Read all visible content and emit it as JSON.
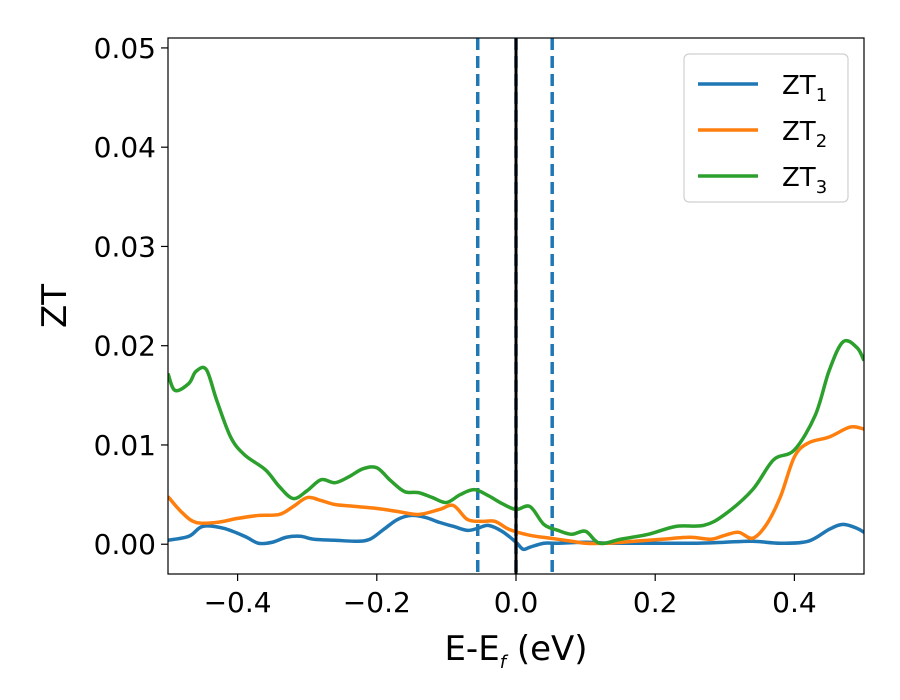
{
  "chart_data": {
    "type": "line",
    "xlabel": "E-E",
    "xlabel_sub": "f",
    "xlabel_unit": " (eV)",
    "ylabel": "ZT",
    "xlim": [
      -0.5,
      0.5
    ],
    "ylim": [
      -0.003,
      0.051
    ],
    "xticks": [
      -0.4,
      -0.2,
      0.0,
      0.2,
      0.4
    ],
    "xtick_labels": [
      "−0.4",
      "−0.2",
      "0.0",
      "0.2",
      "0.4"
    ],
    "yticks": [
      0.0,
      0.01,
      0.02,
      0.03,
      0.04,
      0.05
    ],
    "ytick_labels": [
      "0.00",
      "0.01",
      "0.02",
      "0.03",
      "0.04",
      "0.05"
    ],
    "legend_position": "top-right",
    "vlines": [
      {
        "x": -0.055,
        "style": "dashed",
        "color": "#1f77b4"
      },
      {
        "x": 0.0,
        "style": "dashed",
        "color": "#1f77b4"
      },
      {
        "x": 0.0,
        "style": "solid",
        "color": "#000000"
      },
      {
        "x": 0.052,
        "style": "dashed",
        "color": "#1f77b4"
      }
    ],
    "series": [
      {
        "name": "ZT",
        "sub": "1",
        "color": "#1f77b4",
        "x": [
          -0.5,
          -0.47,
          -0.45,
          -0.42,
          -0.39,
          -0.37,
          -0.35,
          -0.33,
          -0.31,
          -0.29,
          -0.26,
          -0.23,
          -0.21,
          -0.19,
          -0.17,
          -0.15,
          -0.13,
          -0.11,
          -0.09,
          -0.07,
          -0.055,
          -0.04,
          -0.02,
          0.0,
          0.01,
          0.02,
          0.04,
          0.06,
          0.1,
          0.14,
          0.2,
          0.26,
          0.3,
          0.34,
          0.38,
          0.42,
          0.45,
          0.47,
          0.49,
          0.5
        ],
        "y": [
          0.0004,
          0.0008,
          0.0018,
          0.0016,
          0.0008,
          0.0001,
          0.0002,
          0.0007,
          0.0008,
          0.0005,
          0.0004,
          0.0003,
          0.0005,
          0.0015,
          0.0025,
          0.0029,
          0.0027,
          0.0022,
          0.0018,
          0.0014,
          0.0016,
          0.0019,
          0.0013,
          0.0002,
          -0.0005,
          -0.0003,
          0.0001,
          0.0001,
          0.0002,
          0.0001,
          0.0001,
          0.0001,
          0.0002,
          0.0003,
          0.0001,
          0.0003,
          0.0015,
          0.002,
          0.0016,
          0.0012
        ]
      },
      {
        "name": "ZT",
        "sub": "2",
        "color": "#ff7f0e",
        "x": [
          -0.5,
          -0.48,
          -0.46,
          -0.43,
          -0.4,
          -0.37,
          -0.34,
          -0.32,
          -0.3,
          -0.28,
          -0.26,
          -0.23,
          -0.2,
          -0.17,
          -0.14,
          -0.11,
          -0.09,
          -0.07,
          -0.05,
          -0.03,
          -0.01,
          0.02,
          0.05,
          0.08,
          0.1,
          0.13,
          0.17,
          0.21,
          0.25,
          0.28,
          0.3,
          0.32,
          0.34,
          0.36,
          0.38,
          0.4,
          0.42,
          0.45,
          0.48,
          0.5
        ],
        "y": [
          0.0048,
          0.0032,
          0.0022,
          0.0022,
          0.0026,
          0.0029,
          0.003,
          0.0038,
          0.0047,
          0.0044,
          0.004,
          0.0038,
          0.0036,
          0.0033,
          0.003,
          0.0035,
          0.0039,
          0.0025,
          0.0023,
          0.0023,
          0.0015,
          0.0009,
          0.0006,
          0.0003,
          0.0001,
          0.0001,
          0.0003,
          0.0005,
          0.0007,
          0.0005,
          0.0009,
          0.0012,
          0.0006,
          0.002,
          0.0048,
          0.0088,
          0.0102,
          0.0108,
          0.0118,
          0.0116
        ]
      },
      {
        "name": "ZT",
        "sub": "3",
        "color": "#2ca02c",
        "x": [
          -0.5,
          -0.49,
          -0.47,
          -0.46,
          -0.445,
          -0.43,
          -0.41,
          -0.39,
          -0.36,
          -0.34,
          -0.32,
          -0.3,
          -0.28,
          -0.26,
          -0.24,
          -0.22,
          -0.2,
          -0.18,
          -0.16,
          -0.14,
          -0.12,
          -0.1,
          -0.08,
          -0.06,
          -0.04,
          -0.02,
          0.0,
          0.02,
          0.04,
          0.06,
          0.08,
          0.1,
          0.12,
          0.15,
          0.19,
          0.23,
          0.27,
          0.3,
          0.34,
          0.37,
          0.4,
          0.43,
          0.45,
          0.47,
          0.49,
          0.5
        ],
        "y": [
          0.0172,
          0.0155,
          0.0162,
          0.0174,
          0.0176,
          0.0145,
          0.0108,
          0.009,
          0.0075,
          0.0058,
          0.0046,
          0.0054,
          0.0065,
          0.0062,
          0.0068,
          0.0076,
          0.0077,
          0.0064,
          0.0053,
          0.0052,
          0.0047,
          0.0042,
          0.005,
          0.0055,
          0.0049,
          0.0041,
          0.0035,
          0.0038,
          0.002,
          0.0014,
          0.001,
          0.0013,
          0.0001,
          0.0005,
          0.001,
          0.0018,
          0.0019,
          0.003,
          0.0055,
          0.0085,
          0.0095,
          0.013,
          0.0175,
          0.0204,
          0.0198,
          0.0185
        ]
      }
    ]
  }
}
